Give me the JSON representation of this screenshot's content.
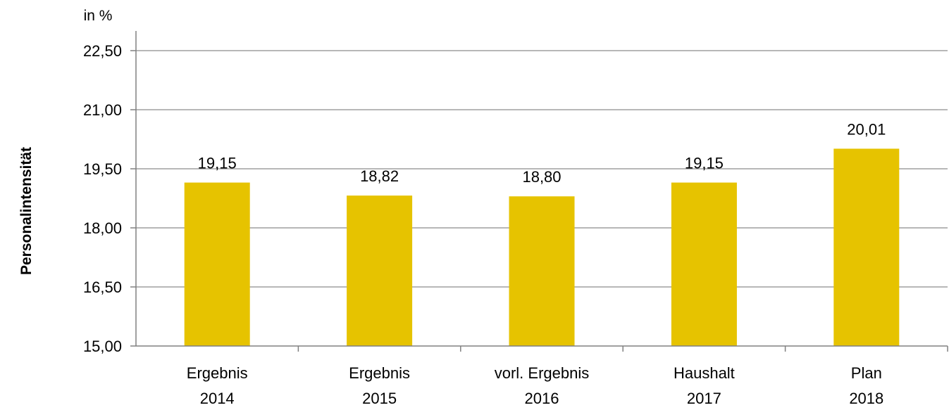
{
  "chart_data": {
    "type": "bar",
    "unit_label": "in %",
    "ylabel": "Personalintensität",
    "xlabel": "",
    "ylim": [
      15.0,
      22.5
    ],
    "yticks": [
      "15,00",
      "16,50",
      "18,00",
      "19,50",
      "21,00",
      "22,50"
    ],
    "ytick_values": [
      15.0,
      16.5,
      18.0,
      19.5,
      21.0,
      22.5
    ],
    "grid": true,
    "bar_color": "#E6C300",
    "categories": [
      {
        "line1": "Ergebnis",
        "line2": "2014"
      },
      {
        "line1": "Ergebnis",
        "line2": "2015"
      },
      {
        "line1": "vorl. Ergebnis",
        "line2": "2016"
      },
      {
        "line1": "Haushalt",
        "line2": "2017"
      },
      {
        "line1": "Plan",
        "line2": "2018"
      }
    ],
    "values": [
      19.15,
      18.82,
      18.8,
      19.15,
      20.01
    ],
    "value_labels": [
      "19,15",
      "18,82",
      "18,80",
      "19,15",
      "20,01"
    ]
  }
}
